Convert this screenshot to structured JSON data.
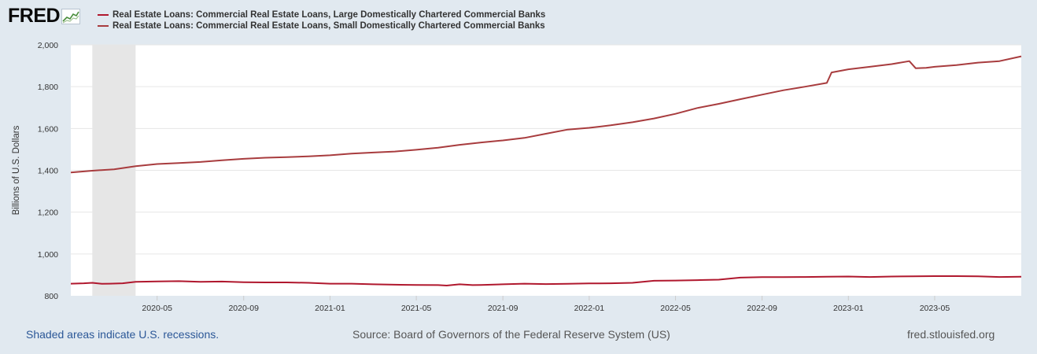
{
  "logo": {
    "text": "FRED",
    "icon": "chart-line-icon"
  },
  "colors": {
    "series_large": "#b0182e",
    "series_small": "#a83c3e",
    "recession": "#e6e6e6",
    "plot_bg": "#ffffff",
    "grid": "#e6e6e6",
    "page_bg": "#e1e9f0"
  },
  "footer": {
    "note": "Shaded areas indicate U.S. recessions.",
    "source": "Source: Board of Governors of the Federal Reserve System (US)",
    "site": "fred.stlouisfed.org"
  },
  "chart_data": {
    "type": "line",
    "title": "",
    "xlabel": "",
    "ylabel": "Billions of U.S. Dollars",
    "ylim": [
      800,
      2000
    ],
    "yticks": [
      800,
      1000,
      1200,
      1400,
      1600,
      1800,
      2000
    ],
    "ytick_labels": [
      "800",
      "1,000",
      "1,200",
      "1,400",
      "1,600",
      "1,800",
      "2,000"
    ],
    "xlim": [
      2020.0,
      2023.667
    ],
    "xticks": [
      2020.333,
      2020.667,
      2021.0,
      2021.333,
      2021.667,
      2022.0,
      2022.333,
      2022.667,
      2023.0,
      2023.333
    ],
    "xtick_labels": [
      "2020-05",
      "2020-09",
      "2021-01",
      "2021-05",
      "2021-09",
      "2022-01",
      "2022-05",
      "2022-09",
      "2023-01",
      "2023-05"
    ],
    "grid": true,
    "recession_shading": [
      [
        2020.083,
        2020.25
      ]
    ],
    "series": [
      {
        "name": "Real Estate Loans: Commercial Real Estate Loans, Large Domestically Chartered Commercial Banks",
        "x": [
          2020.0,
          2020.05,
          2020.083,
          2020.12,
          2020.15,
          2020.2,
          2020.25,
          2020.333,
          2020.417,
          2020.5,
          2020.583,
          2020.667,
          2020.75,
          2020.833,
          2020.917,
          2021.0,
          2021.083,
          2021.167,
          2021.25,
          2021.333,
          2021.417,
          2021.45,
          2021.5,
          2021.55,
          2021.583,
          2021.667,
          2021.75,
          2021.833,
          2021.917,
          2022.0,
          2022.083,
          2022.167,
          2022.25,
          2022.333,
          2022.417,
          2022.5,
          2022.583,
          2022.667,
          2022.75,
          2022.833,
          2022.917,
          2023.0,
          2023.083,
          2023.167,
          2023.25,
          2023.333,
          2023.417,
          2023.5,
          2023.583,
          2023.667
        ],
        "values": [
          858,
          860,
          862,
          857,
          858,
          860,
          867,
          869,
          870,
          867,
          868,
          865,
          864,
          864,
          862,
          858,
          858,
          855,
          853,
          852,
          851,
          849,
          855,
          851,
          852,
          855,
          858,
          856,
          857,
          859,
          860,
          862,
          872,
          873,
          875,
          877,
          887,
          889,
          889,
          890,
          891,
          892,
          890,
          892,
          893,
          894,
          894,
          893,
          890,
          891
        ]
      },
      {
        "name": "Real Estate Loans: Commercial Real Estate Loans, Small Domestically Chartered Commercial Banks",
        "x": [
          2020.0,
          2020.083,
          2020.167,
          2020.25,
          2020.333,
          2020.417,
          2020.5,
          2020.583,
          2020.667,
          2020.75,
          2020.833,
          2020.917,
          2021.0,
          2021.083,
          2021.167,
          2021.25,
          2021.333,
          2021.417,
          2021.5,
          2021.583,
          2021.667,
          2021.75,
          2021.833,
          2021.917,
          2022.0,
          2022.083,
          2022.167,
          2022.25,
          2022.333,
          2022.417,
          2022.5,
          2022.583,
          2022.667,
          2022.75,
          2022.833,
          2022.917,
          2022.935,
          2023.0,
          2023.083,
          2023.167,
          2023.235,
          2023.26,
          2023.3,
          2023.333,
          2023.417,
          2023.5,
          2023.583,
          2023.667
        ],
        "values": [
          1390,
          1398,
          1405,
          1420,
          1430,
          1435,
          1440,
          1448,
          1455,
          1460,
          1463,
          1467,
          1472,
          1480,
          1485,
          1490,
          1498,
          1508,
          1522,
          1533,
          1543,
          1555,
          1575,
          1595,
          1603,
          1615,
          1630,
          1648,
          1670,
          1698,
          1718,
          1740,
          1762,
          1783,
          1800,
          1818,
          1868,
          1883,
          1895,
          1908,
          1922,
          1888,
          1890,
          1895,
          1903,
          1915,
          1922,
          1945
        ]
      }
    ]
  }
}
